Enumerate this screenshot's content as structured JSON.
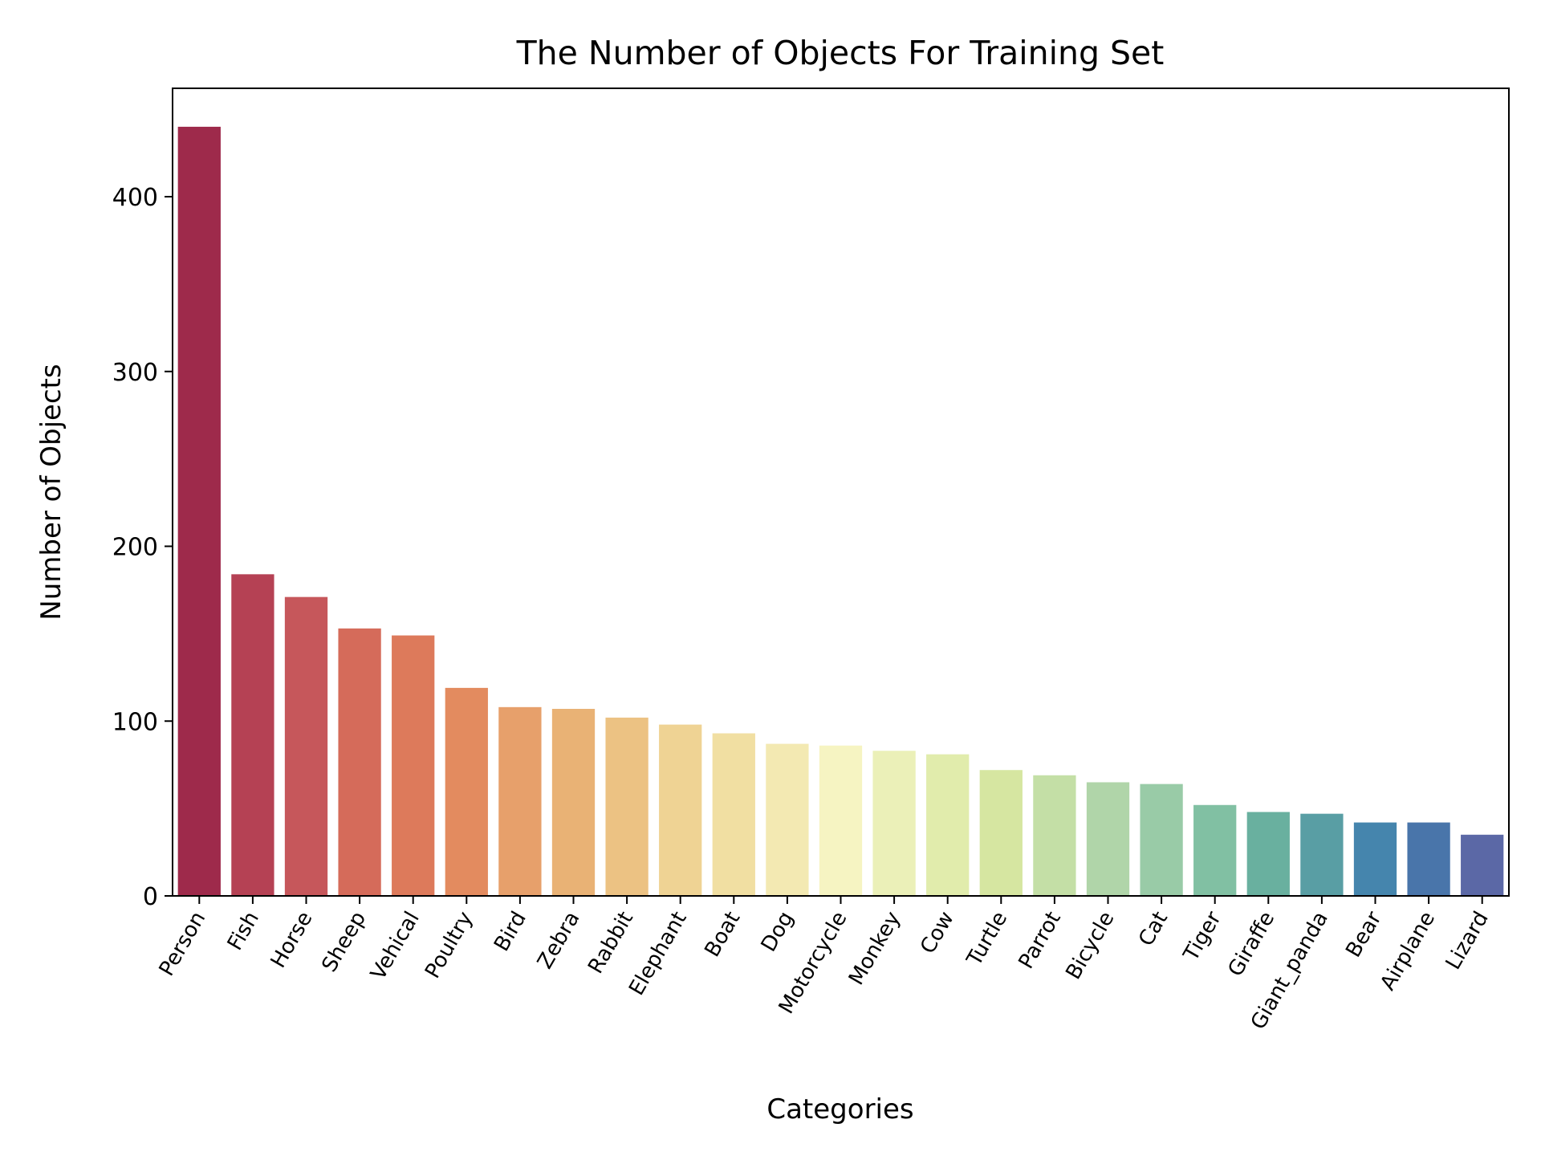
{
  "chart_data": {
    "type": "bar",
    "title": "The Number of Objects For Training Set",
    "xlabel": "Categories",
    "ylabel": "Number of Objects",
    "ylim": [
      0,
      462
    ],
    "yticks": [
      0,
      100,
      200,
      300,
      400
    ],
    "grid": false,
    "legend": "none",
    "categories": [
      "Person",
      "Fish",
      "Horse",
      "Sheep",
      "Vehical",
      "Poultry",
      "Bird",
      "Zebra",
      "Rabbit",
      "Elephant",
      "Boat",
      "Dog",
      "Motorcycle",
      "Monkey",
      "Cow",
      "Turtle",
      "Parrot",
      "Bicycle",
      "Cat",
      "Tiger",
      "Giraffe",
      "Giant_panda",
      "Bear",
      "Airplane",
      "Lizard"
    ],
    "values": [
      440,
      184,
      171,
      153,
      149,
      119,
      108,
      107,
      102,
      98,
      93,
      87,
      86,
      83,
      81,
      72,
      69,
      65,
      64,
      52,
      48,
      47,
      42,
      42,
      35
    ],
    "colors": [
      "#9e2a4b",
      "#b54154",
      "#c6575b",
      "#d56b5a",
      "#dd7a5b",
      "#e38b5f",
      "#e7a06b",
      "#e9b275",
      "#ecc283",
      "#efd394",
      "#f1dfa2",
      "#f3e9b2",
      "#f6f4c2",
      "#ebf0b8",
      "#e1ecac",
      "#d6e6a1",
      "#c4dfa6",
      "#b0d5a9",
      "#99cba7",
      "#81c0a3",
      "#69b09f",
      "#599ea4",
      "#4585ad",
      "#4975aa",
      "#5b68a6"
    ]
  }
}
